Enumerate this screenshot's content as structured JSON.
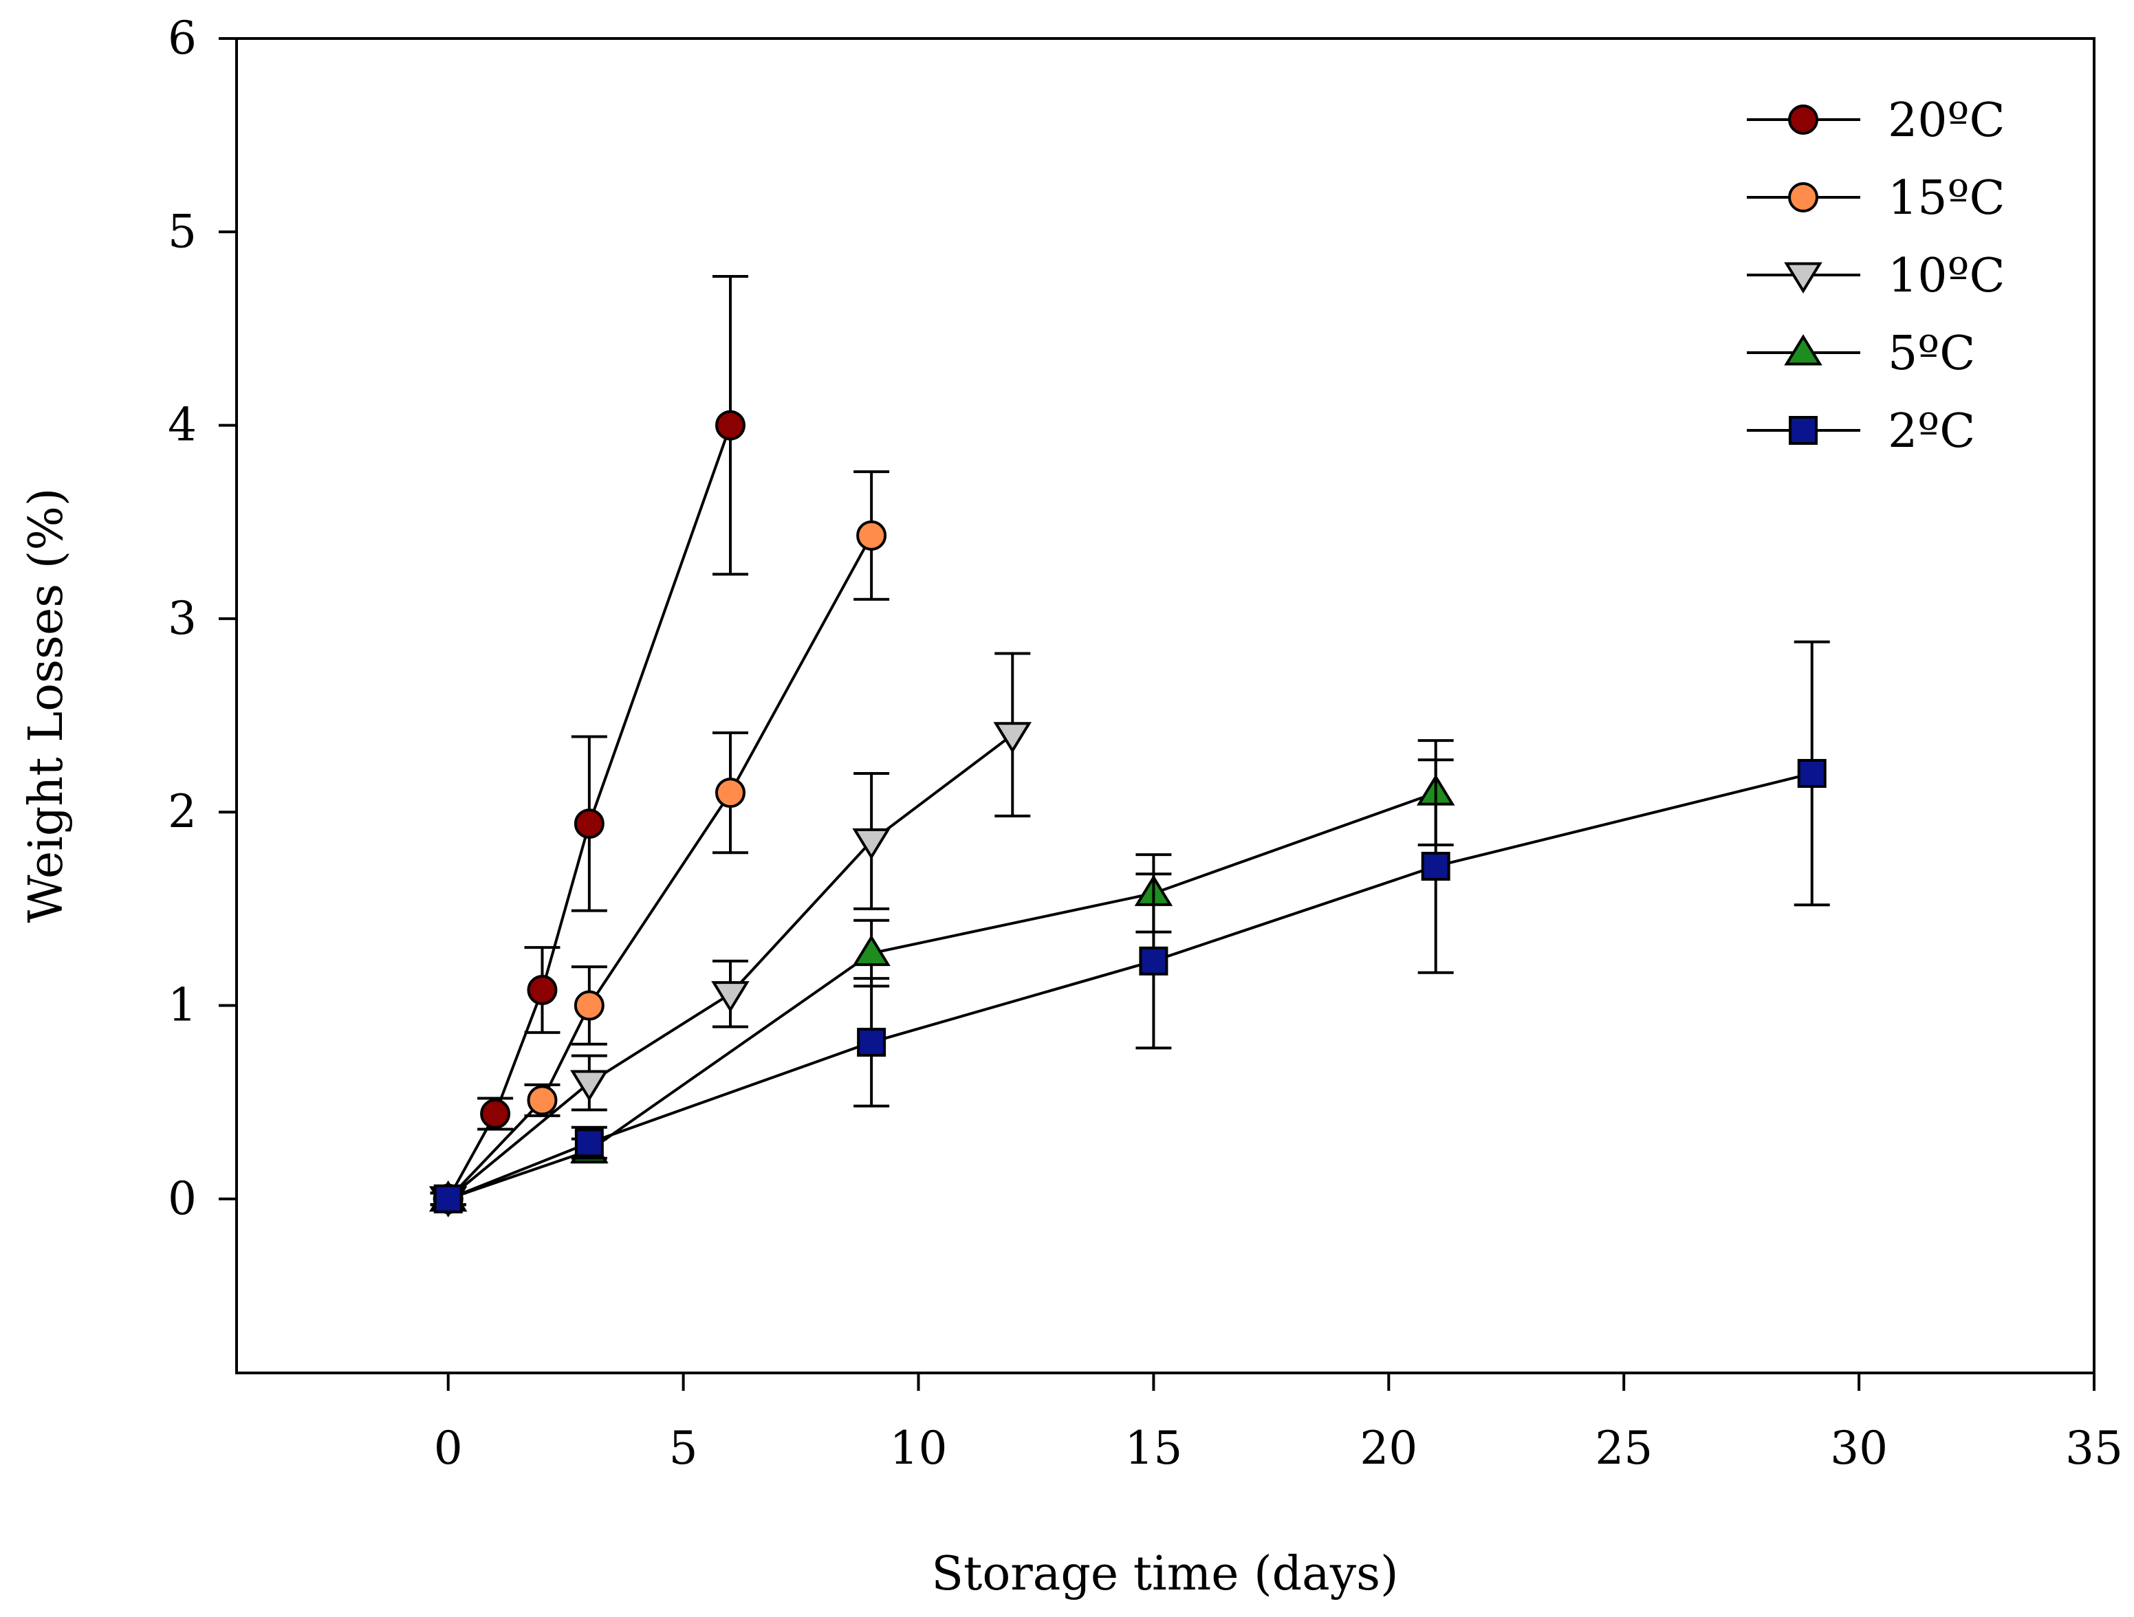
{
  "chart_data": {
    "type": "line",
    "title": "",
    "xlabel": "Storage time (days)",
    "ylabel": "Weight Losses (%)",
    "xlim": [
      -4.5,
      35
    ],
    "ylim": [
      -0.9,
      6
    ],
    "xticks": [
      0,
      5,
      10,
      15,
      20,
      25,
      30,
      35
    ],
    "yticks": [
      0,
      1,
      2,
      3,
      4,
      5,
      6
    ],
    "grid": false,
    "legend_position": "top-right",
    "series": [
      {
        "name": "20ºC",
        "marker": "circle",
        "color": "#8B0000",
        "points": [
          {
            "x": 0,
            "y": 0,
            "err": 0.03
          },
          {
            "x": 1,
            "y": 0.44,
            "err": 0.08
          },
          {
            "x": 2,
            "y": 1.08,
            "err": 0.22
          },
          {
            "x": 3,
            "y": 1.94,
            "err": 0.45
          },
          {
            "x": 6,
            "y": 4.0,
            "err": 0.77
          }
        ]
      },
      {
        "name": "15ºC",
        "marker": "circle",
        "color": "#FF8C4A",
        "points": [
          {
            "x": 0,
            "y": 0,
            "err": 0.03
          },
          {
            "x": 2,
            "y": 0.51,
            "err": 0.08
          },
          {
            "x": 3,
            "y": 1.0,
            "err": 0.2
          },
          {
            "x": 6,
            "y": 2.1,
            "err": 0.31
          },
          {
            "x": 9,
            "y": 3.43,
            "err": 0.33
          }
        ]
      },
      {
        "name": "10ºC",
        "marker": "triangle-down",
        "color": "#C8C8C8",
        "points": [
          {
            "x": 0,
            "y": 0,
            "err": 0.03
          },
          {
            "x": 3,
            "y": 0.6,
            "err": 0.14
          },
          {
            "x": 6,
            "y": 1.06,
            "err": 0.17
          },
          {
            "x": 9,
            "y": 1.85,
            "err": 0.35
          },
          {
            "x": 12,
            "y": 2.4,
            "err": 0.42
          }
        ]
      },
      {
        "name": "5ºC",
        "marker": "triangle-up",
        "color": "#1E8C1E",
        "points": [
          {
            "x": 0,
            "y": 0,
            "err": 0.03
          },
          {
            "x": 3,
            "y": 0.25,
            "err": 0.06
          },
          {
            "x": 9,
            "y": 1.27,
            "err": 0.17
          },
          {
            "x": 15,
            "y": 1.58,
            "err": 0.2
          },
          {
            "x": 21,
            "y": 2.1,
            "err": 0.27
          }
        ]
      },
      {
        "name": "2ºC",
        "marker": "square",
        "color": "#0A148C",
        "points": [
          {
            "x": 0,
            "y": 0,
            "err": 0.03
          },
          {
            "x": 3,
            "y": 0.29,
            "err": 0.08
          },
          {
            "x": 9,
            "y": 0.81,
            "err": 0.33
          },
          {
            "x": 15,
            "y": 1.23,
            "err": 0.45
          },
          {
            "x": 21,
            "y": 1.72,
            "err": 0.55
          },
          {
            "x": 29,
            "y": 2.2,
            "err": 0.68
          }
        ]
      }
    ]
  }
}
